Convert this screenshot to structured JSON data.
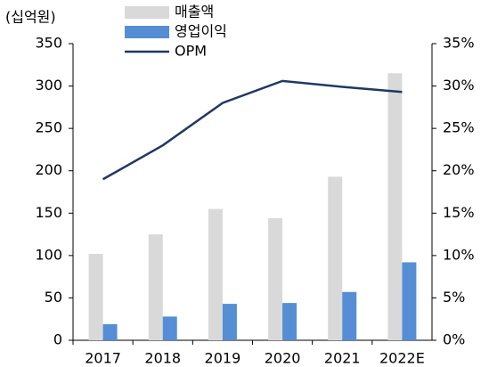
{
  "chart_data": {
    "type": "bar-line",
    "y_label": "(십억원)",
    "categories": [
      "2017",
      "2018",
      "2019",
      "2020",
      "2021",
      "2022E"
    ],
    "series": [
      {
        "name": "매출액",
        "color": "#d9d9d9",
        "type": "bar",
        "values": [
          102,
          125,
          155,
          144,
          193,
          315
        ]
      },
      {
        "name": "영업이익",
        "color": "#558ed5",
        "type": "bar",
        "values": [
          19,
          28,
          43,
          44,
          57,
          92
        ]
      },
      {
        "name": "OPM",
        "color": "#1f3864",
        "type": "line",
        "axis": "y2",
        "values": [
          19.0,
          23.0,
          28.0,
          30.6,
          29.9,
          29.3
        ]
      }
    ],
    "ylim": [
      0,
      350
    ],
    "yticks": [
      0,
      50,
      100,
      150,
      200,
      250,
      300,
      350
    ],
    "y2lim": [
      0,
      35
    ],
    "y2ticks": [
      {
        "value": 0,
        "label": "0%"
      },
      {
        "value": 5,
        "label": "5%"
      },
      {
        "value": 10,
        "label": "10%"
      },
      {
        "value": 15,
        "label": "15%"
      },
      {
        "value": 20,
        "label": "20%"
      },
      {
        "value": 25,
        "label": "25%"
      },
      {
        "value": 30,
        "label": "30%"
      },
      {
        "value": 35,
        "label": "35%"
      }
    ],
    "grid": false
  }
}
